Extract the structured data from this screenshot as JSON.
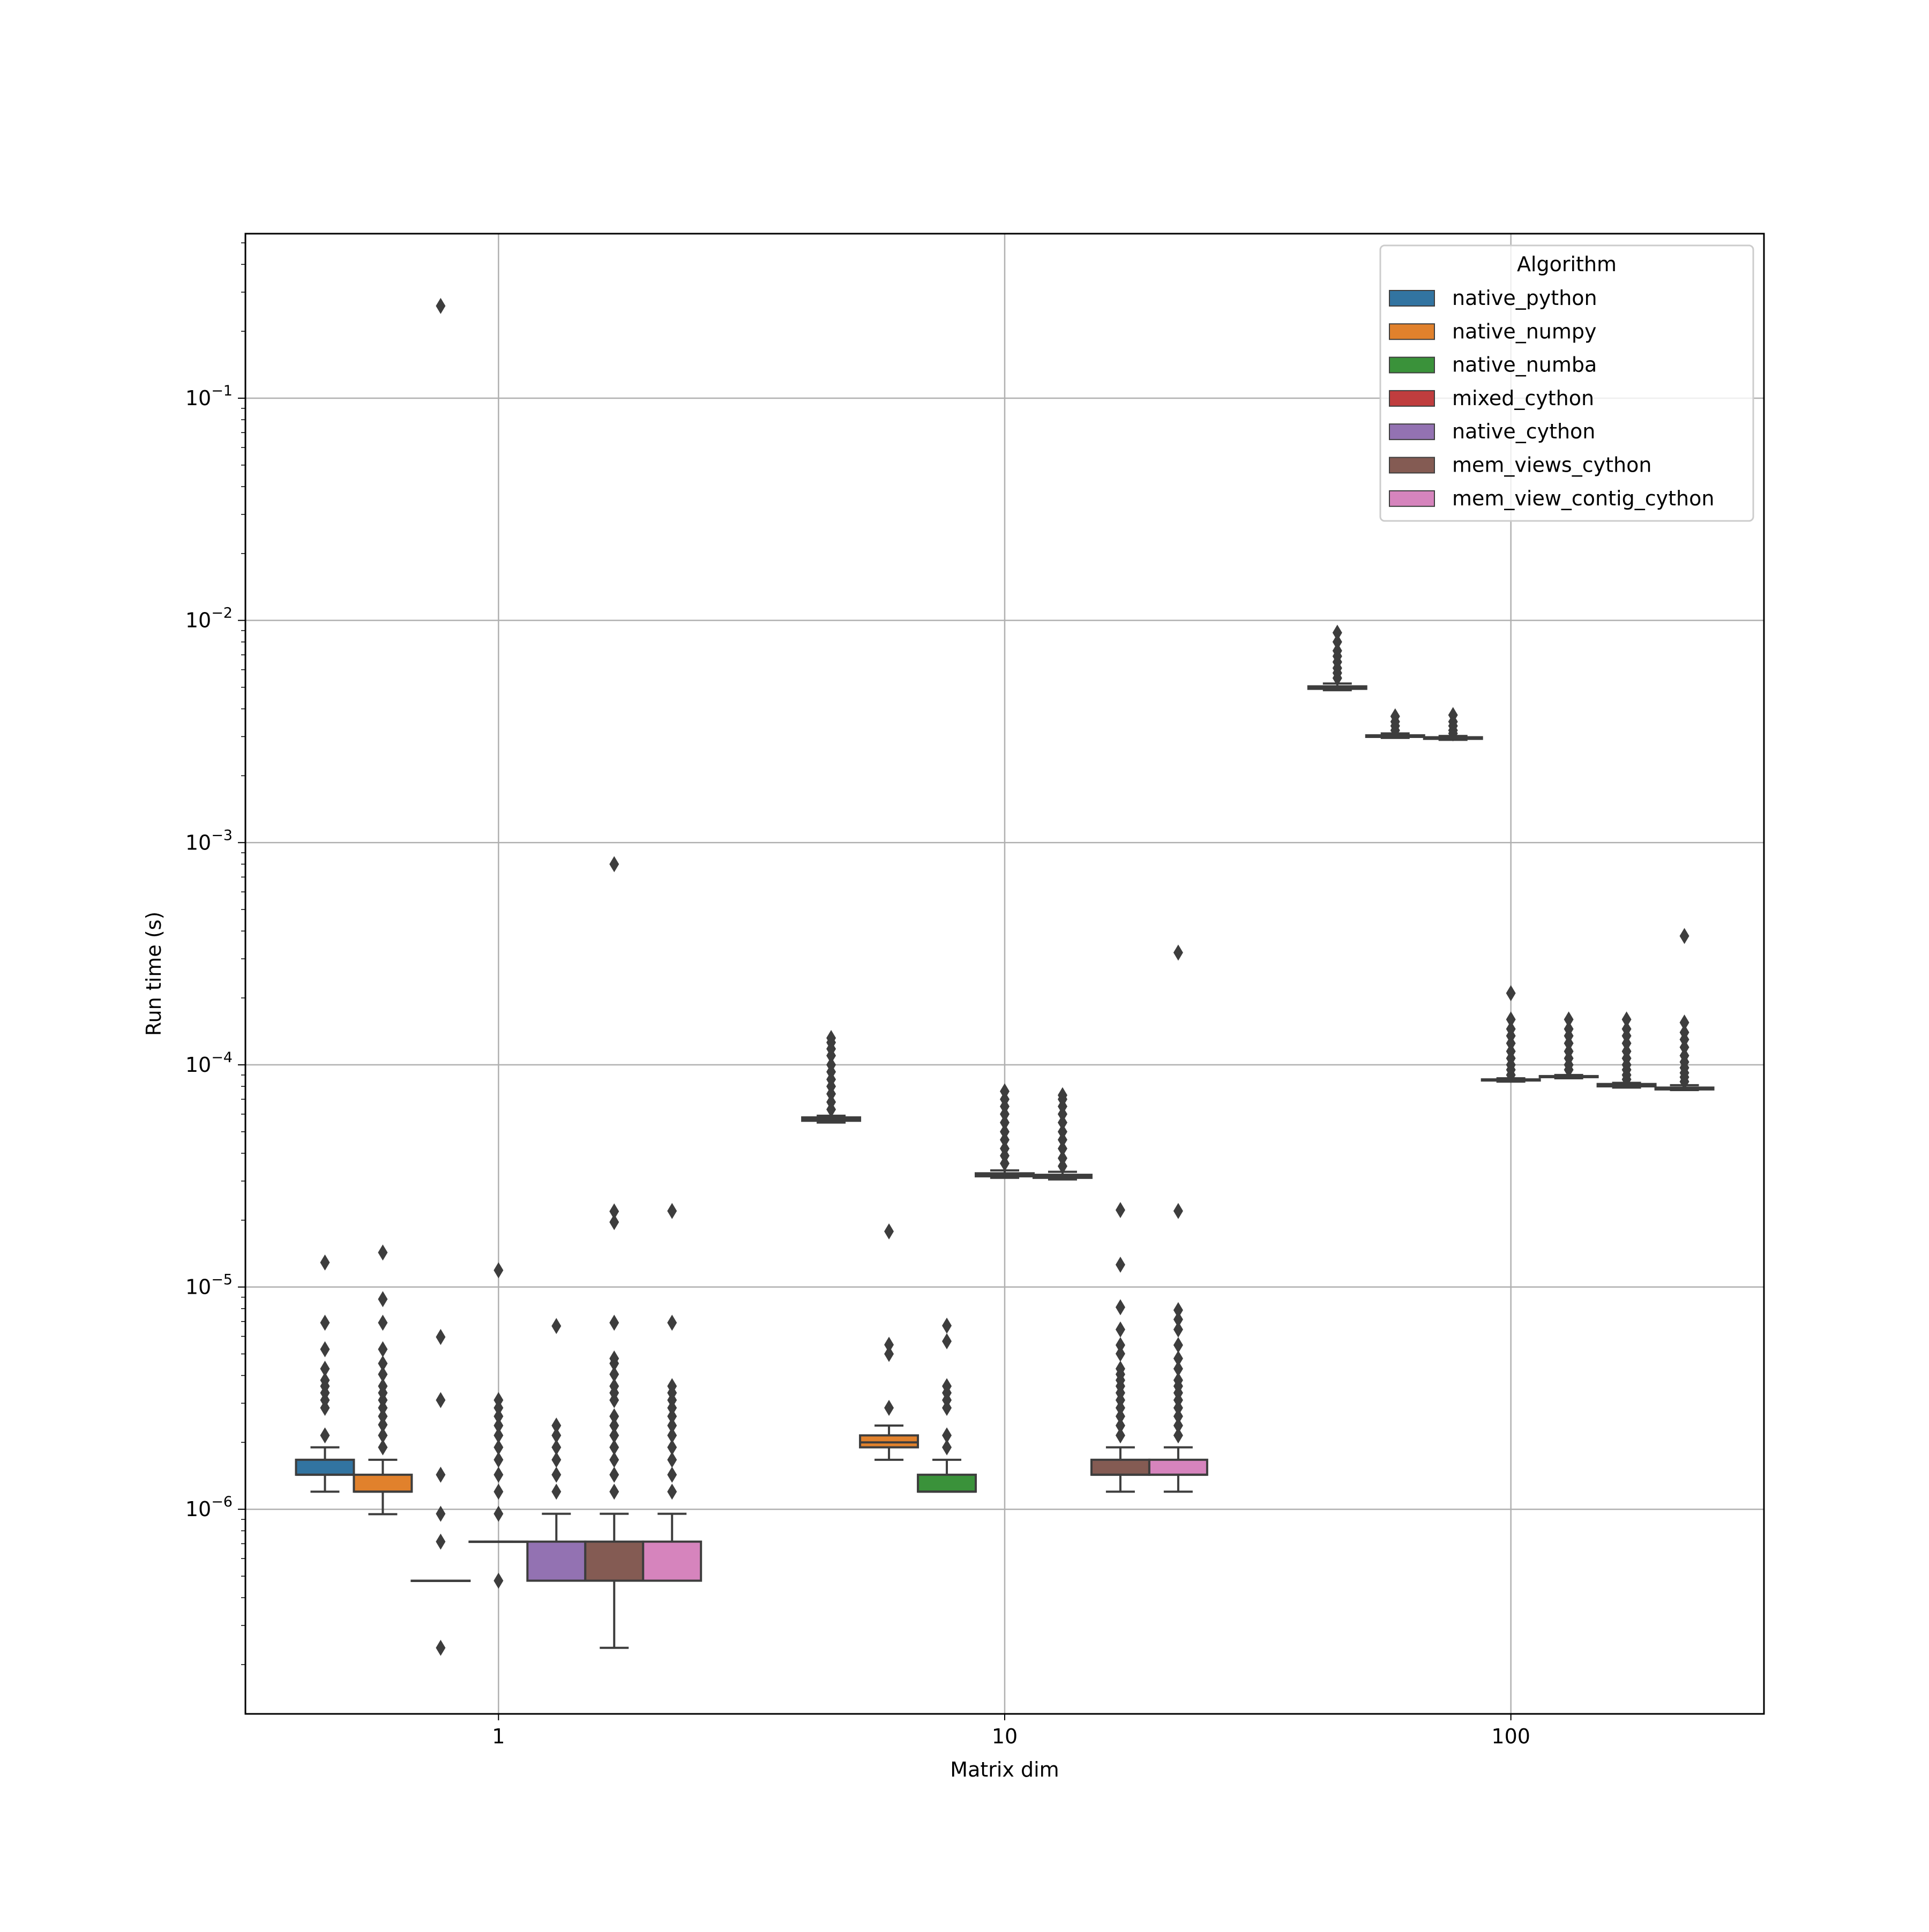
{
  "chart_data": {
    "type": "box",
    "title": "",
    "xlabel": "Matrix dim",
    "ylabel": "Run time (s)",
    "yscale": "log",
    "ylim": [
      1.2e-07,
      0.55
    ],
    "grid": true,
    "legend": {
      "title": "Algorithm",
      "placement": "top-right"
    },
    "categories": [
      "1",
      "10",
      "100"
    ],
    "y_ticks": [
      {
        "value": 1e-06,
        "base": "10",
        "exp": "−6"
      },
      {
        "value": 1e-05,
        "base": "10",
        "exp": "−5"
      },
      {
        "value": 0.0001,
        "base": "10",
        "exp": "−4"
      },
      {
        "value": 0.001,
        "base": "10",
        "exp": "−3"
      },
      {
        "value": 0.01,
        "base": "10",
        "exp": "−2"
      },
      {
        "value": 0.1,
        "base": "10",
        "exp": "−1"
      }
    ],
    "series": [
      {
        "name": "native_python",
        "color": "#3274a1",
        "boxes": [
          {
            "category": "1",
            "whislo": 1.2e-06,
            "q1": 1.43e-06,
            "med": 1.43e-06,
            "q3": 1.67e-06,
            "whishi": 1.9e-06,
            "fliers": [
              2.15e-06,
              2.86e-06,
              3.1e-06,
              3.34e-06,
              3.58e-06,
              3.81e-06,
              4.29e-06,
              5.25e-06,
              6.91e-06,
              1.29e-05
            ]
          },
          {
            "category": "10",
            "whislo": 5.5e-05,
            "q1": 5.6e-05,
            "med": 5.7e-05,
            "q3": 5.8e-05,
            "whishi": 5.9e-05,
            "fliers": [
              6.3e-05,
              6.8e-05,
              7.4e-05,
              8e-05,
              8.6e-05,
              9.3e-05,
              0.0001,
              0.00011,
              0.000118,
              0.000126,
              0.000132
            ]
          },
          {
            "category": "100",
            "whislo": 0.00485,
            "q1": 0.00492,
            "med": 0.00498,
            "q3": 0.00505,
            "whishi": 0.0052,
            "fliers": [
              0.0055,
              0.0058,
              0.0061,
              0.0065,
              0.0069,
              0.0073,
              0.008,
              0.0088
            ]
          }
        ]
      },
      {
        "name": "native_numpy",
        "color": "#e1812c",
        "boxes": [
          {
            "category": "1",
            "whislo": 9.5e-07,
            "q1": 1.2e-06,
            "med": 1.2e-06,
            "q3": 1.43e-06,
            "whishi": 1.67e-06,
            "fliers": [
              1.9e-06,
              2.15e-06,
              2.4e-06,
              2.62e-06,
              2.86e-06,
              3.1e-06,
              3.34e-06,
              3.58e-06,
              4.05e-06,
              4.53e-06,
              5.25e-06,
              6.91e-06,
              8.82e-06,
              1.43e-05
            ]
          },
          {
            "category": "10",
            "whislo": 1.67e-06,
            "q1": 1.9e-06,
            "med": 2e-06,
            "q3": 2.15e-06,
            "whishi": 2.38e-06,
            "fliers": [
              2.86e-06,
              5e-06,
              5.5e-06,
              1.78e-05
            ]
          },
          {
            "category": "100",
            "whislo": 0.00296,
            "q1": 0.00299,
            "med": 0.00301,
            "q3": 0.00304,
            "whishi": 0.0031,
            "fliers": [
              0.0032,
              0.00335,
              0.0035,
              0.0037
            ]
          }
        ]
      },
      {
        "name": "native_numba",
        "color": "#3a923a",
        "boxes": [
          {
            "category": "1",
            "whislo": 4.77e-07,
            "q1": 4.77e-07,
            "med": 4.77e-07,
            "q3": 4.77e-07,
            "whishi": 4.77e-07,
            "fliers": [
              2.38e-07,
              7.15e-07,
              9.54e-07,
              1.43e-06,
              3.1e-06,
              5.96e-06,
              0.26
            ]
          },
          {
            "category": "10",
            "whislo": 1.2e-06,
            "q1": 1.2e-06,
            "med": 1.2e-06,
            "q3": 1.43e-06,
            "whishi": 1.67e-06,
            "fliers": [
              1.9e-06,
              2.15e-06,
              2.86e-06,
              3.1e-06,
              3.34e-06,
              3.58e-06,
              5.7e-06,
              6.7e-06
            ]
          },
          {
            "category": "100",
            "whislo": 0.0029,
            "q1": 0.00293,
            "med": 0.00295,
            "q3": 0.00298,
            "whishi": 0.00302,
            "fliers": [
              0.0031,
              0.0032,
              0.00335,
              0.0035,
              0.00375
            ]
          }
        ]
      },
      {
        "name": "mixed_cython",
        "color": "#c03d3e",
        "boxes": [
          {
            "category": "1",
            "whislo": 7.15e-07,
            "q1": 7.15e-07,
            "med": 7.15e-07,
            "q3": 7.15e-07,
            "whishi": 7.15e-07,
            "fliers": [
              4.77e-07,
              9.54e-07,
              1.2e-06,
              1.43e-06,
              1.67e-06,
              1.9e-06,
              2.15e-06,
              2.38e-06,
              2.62e-06,
              2.86e-06,
              3.1e-06,
              1.19e-05
            ]
          },
          {
            "category": "10",
            "whislo": 3.1e-05,
            "q1": 3.15e-05,
            "med": 3.2e-05,
            "q3": 3.25e-05,
            "whishi": 3.35e-05,
            "fliers": [
              3.6e-05,
              3.9e-05,
              4.2e-05,
              4.6e-05,
              5e-05,
              5.5e-05,
              6e-05,
              6.5e-05,
              7e-05,
              7.6e-05
            ]
          },
          {
            "category": "100",
            "whislo": 8.4e-05,
            "q1": 8.5e-05,
            "med": 8.55e-05,
            "q3": 8.6e-05,
            "whishi": 8.7e-05,
            "fliers": [
              9e-05,
              9.5e-05,
              0.0001,
              0.000107,
              0.000115,
              0.000125,
              0.000135,
              0.000145,
              0.00016,
              0.00021
            ]
          }
        ]
      },
      {
        "name": "native_cython",
        "color": "#9372b2",
        "boxes": [
          {
            "category": "1",
            "whislo": 4.77e-07,
            "q1": 4.77e-07,
            "med": 4.77e-07,
            "q3": 7.15e-07,
            "whishi": 9.54e-07,
            "fliers": [
              1.2e-06,
              1.43e-06,
              1.67e-06,
              1.9e-06,
              2.15e-06,
              2.38e-06,
              6.68e-06
            ]
          },
          {
            "category": "10",
            "whislo": 3.05e-05,
            "q1": 3.1e-05,
            "med": 3.15e-05,
            "q3": 3.2e-05,
            "whishi": 3.3e-05,
            "fliers": [
              3.5e-05,
              3.8e-05,
              4.2e-05,
              4.6e-05,
              5e-05,
              5.5e-05,
              6e-05,
              6.5e-05,
              7e-05,
              7.3e-05
            ]
          },
          {
            "category": "100",
            "whislo": 8.7e-05,
            "q1": 8.8e-05,
            "med": 8.85e-05,
            "q3": 8.9e-05,
            "whishi": 9e-05,
            "fliers": [
              9.5e-05,
              0.0001,
              0.000107,
              0.000115,
              0.000125,
              0.000135,
              0.000145,
              0.00016
            ]
          }
        ]
      },
      {
        "name": "mem_views_cython",
        "color": "#845b53",
        "boxes": [
          {
            "category": "1",
            "whislo": 2.38e-07,
            "q1": 4.77e-07,
            "med": 4.77e-07,
            "q3": 7.15e-07,
            "whishi": 9.54e-07,
            "fliers": [
              1.2e-06,
              1.43e-06,
              1.67e-06,
              1.9e-06,
              2.15e-06,
              2.38e-06,
              2.62e-06,
              3.1e-06,
              3.34e-06,
              3.58e-06,
              4.05e-06,
              4.53e-06,
              4.77e-06,
              6.91e-06,
              1.96e-05,
              2.19e-05,
              0.0008
            ]
          },
          {
            "category": "10",
            "whislo": 1.2e-06,
            "q1": 1.43e-06,
            "med": 1.43e-06,
            "q3": 1.67e-06,
            "whishi": 1.9e-06,
            "fliers": [
              2.15e-06,
              2.38e-06,
              2.62e-06,
              2.86e-06,
              3.1e-06,
              3.34e-06,
              3.58e-06,
              3.81e-06,
              4.05e-06,
              4.29e-06,
              5.01e-06,
              5.48e-06,
              6.44e-06,
              8.11e-06,
              1.26e-05,
              2.22e-05
            ]
          },
          {
            "category": "100",
            "whislo": 7.9e-05,
            "q1": 8e-05,
            "med": 8.1e-05,
            "q3": 8.2e-05,
            "whishi": 8.3e-05,
            "fliers": [
              8.6e-05,
              9e-05,
              9.5e-05,
              0.0001,
              0.000107,
              0.000115,
              0.000125,
              0.000135,
              0.000145,
              0.00016
            ]
          }
        ]
      },
      {
        "name": "mem_view_contig_cython",
        "color": "#d684bd",
        "boxes": [
          {
            "category": "1",
            "whislo": 4.77e-07,
            "q1": 4.77e-07,
            "med": 4.77e-07,
            "q3": 7.15e-07,
            "whishi": 9.54e-07,
            "fliers": [
              1.2e-06,
              1.43e-06,
              1.67e-06,
              1.9e-06,
              2.15e-06,
              2.38e-06,
              2.62e-06,
              2.86e-06,
              3.1e-06,
              3.34e-06,
              3.58e-06,
              6.91e-06,
              2.2e-05
            ]
          },
          {
            "category": "10",
            "whislo": 1.2e-06,
            "q1": 1.43e-06,
            "med": 1.43e-06,
            "q3": 1.67e-06,
            "whishi": 1.9e-06,
            "fliers": [
              2.15e-06,
              2.38e-06,
              2.62e-06,
              2.86e-06,
              3.1e-06,
              3.34e-06,
              3.58e-06,
              3.81e-06,
              4.29e-06,
              4.77e-06,
              5.48e-06,
              6.44e-06,
              7.15e-06,
              7.87e-06,
              2.2e-05,
              0.00032
            ]
          },
          {
            "category": "100",
            "whislo": 7.7e-05,
            "q1": 7.75e-05,
            "med": 7.8e-05,
            "q3": 7.9e-05,
            "whishi": 8.1e-05,
            "fliers": [
              8.4e-05,
              8.8e-05,
              9.2e-05,
              9.7e-05,
              0.000103,
              0.00011,
              0.00012,
              0.00013,
              0.00014,
              0.000155,
              0.00038
            ]
          }
        ]
      }
    ]
  }
}
